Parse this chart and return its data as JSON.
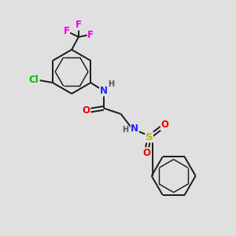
{
  "background_color": "#e0e0e0",
  "bond_color": "#1a1a1a",
  "atom_colors": {
    "F": "#ee00ee",
    "Cl": "#00bb00",
    "N": "#2222ff",
    "O": "#ee0000",
    "S": "#bbbb00",
    "H": "#555555"
  },
  "font_size": 8.5,
  "bond_width": 1.4,
  "fig_size": [
    3.0,
    3.0
  ],
  "dpi": 100
}
